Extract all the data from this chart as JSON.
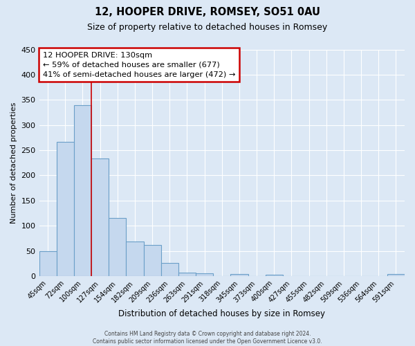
{
  "title": "12, HOOPER DRIVE, ROMSEY, SO51 0AU",
  "subtitle": "Size of property relative to detached houses in Romsey",
  "xlabel": "Distribution of detached houses by size in Romsey",
  "ylabel": "Number of detached properties",
  "bar_labels": [
    "45sqm",
    "72sqm",
    "100sqm",
    "127sqm",
    "154sqm",
    "182sqm",
    "209sqm",
    "236sqm",
    "263sqm",
    "291sqm",
    "318sqm",
    "345sqm",
    "373sqm",
    "400sqm",
    "427sqm",
    "455sqm",
    "482sqm",
    "509sqm",
    "536sqm",
    "564sqm",
    "591sqm"
  ],
  "bar_values": [
    50,
    267,
    340,
    233,
    115,
    68,
    62,
    26,
    7,
    6,
    0,
    4,
    0,
    3,
    0,
    0,
    0,
    0,
    0,
    0,
    4
  ],
  "bar_color": "#c5d8ee",
  "bar_edge_color": "#6a9fc8",
  "ylim": [
    0,
    450
  ],
  "yticks": [
    0,
    50,
    100,
    150,
    200,
    250,
    300,
    350,
    400,
    450
  ],
  "property_line_x": 2.5,
  "property_line_color": "#cc0000",
  "annotation_title": "12 HOOPER DRIVE: 130sqm",
  "annotation_line1": "← 59% of detached houses are smaller (677)",
  "annotation_line2": "41% of semi-detached houses are larger (472) →",
  "annotation_box_color": "#ffffff",
  "annotation_box_edge_color": "#cc0000",
  "footer_line1": "Contains HM Land Registry data © Crown copyright and database right 2024.",
  "footer_line2": "Contains public sector information licensed under the Open Government Licence v3.0.",
  "bg_color": "#dce8f5",
  "plot_bg_color": "#dce8f5",
  "grid_color": "#ffffff"
}
